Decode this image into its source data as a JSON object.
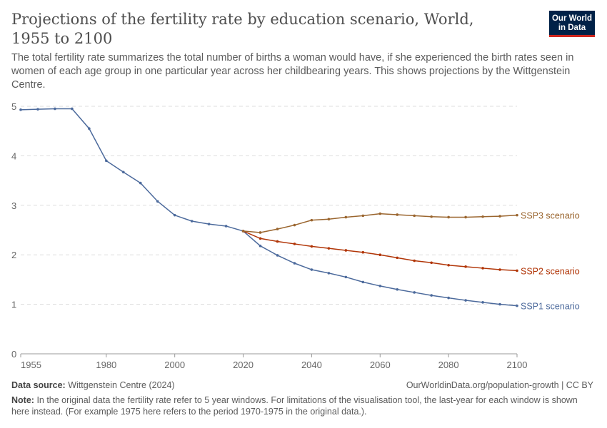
{
  "header": {
    "title": "Projections of the fertility rate by education scenario, World, 1955 to 2100",
    "subtitle": "The total fertility rate summarizes the total number of births a woman would have, if she experienced the birth rates seen in women of each age group in one particular year across her childbearing years. This shows projections by the Wittgenstein Centre.",
    "logo": "Our World in Data"
  },
  "footer": {
    "source_label": "Data source:",
    "source": "Wittgenstein Centre (2024)",
    "url": "OurWorldinData.org/population-growth | CC BY",
    "note_label": "Note:",
    "note": "In the original data the fertility rate refer to 5 year windows. For limitations of the visualisation tool, the last-year for each window is shown here instead. (For example 1975 here refers to the period 1970-1975 in the original data.)."
  },
  "chart_data": {
    "type": "line",
    "xlim": [
      1955,
      2100
    ],
    "ylim": [
      0,
      5
    ],
    "grid": "horizontal dashed",
    "legend": "inline labels at line ends (right)",
    "xticks": [
      1955,
      1980,
      2000,
      2020,
      2040,
      2060,
      2080,
      2100
    ],
    "yticks": [
      0,
      1,
      2,
      3,
      4,
      5
    ],
    "series": [
      {
        "name": "SSP1 scenario",
        "color": "#4c6a9c",
        "x": [
          1955,
          1960,
          1965,
          1970,
          1975,
          1980,
          1985,
          1990,
          1995,
          2000,
          2005,
          2010,
          2015,
          2020,
          2025,
          2030,
          2035,
          2040,
          2045,
          2050,
          2055,
          2060,
          2065,
          2070,
          2075,
          2080,
          2085,
          2090,
          2095,
          2100
        ],
        "y": [
          4.93,
          4.94,
          4.95,
          4.95,
          4.55,
          3.9,
          3.67,
          3.45,
          3.08,
          2.8,
          2.68,
          2.62,
          2.58,
          2.48,
          2.18,
          1.99,
          1.83,
          1.7,
          1.63,
          1.55,
          1.45,
          1.37,
          1.3,
          1.24,
          1.18,
          1.13,
          1.08,
          1.04,
          1.0,
          0.97
        ]
      },
      {
        "name": "SSP2 scenario",
        "color": "#b13507",
        "x": [
          2020,
          2025,
          2030,
          2035,
          2040,
          2045,
          2050,
          2055,
          2060,
          2065,
          2070,
          2075,
          2080,
          2085,
          2090,
          2095,
          2100
        ],
        "y": [
          2.48,
          2.33,
          2.27,
          2.22,
          2.17,
          2.13,
          2.09,
          2.05,
          2.0,
          1.94,
          1.88,
          1.84,
          1.79,
          1.76,
          1.73,
          1.7,
          1.68
        ]
      },
      {
        "name": "SSP3 scenario",
        "color": "#9a652e",
        "x": [
          2020,
          2025,
          2030,
          2035,
          2040,
          2045,
          2050,
          2055,
          2060,
          2065,
          2070,
          2075,
          2080,
          2085,
          2090,
          2095,
          2100
        ],
        "y": [
          2.48,
          2.45,
          2.52,
          2.6,
          2.7,
          2.72,
          2.76,
          2.79,
          2.83,
          2.81,
          2.79,
          2.77,
          2.76,
          2.76,
          2.77,
          2.78,
          2.8
        ]
      }
    ]
  }
}
